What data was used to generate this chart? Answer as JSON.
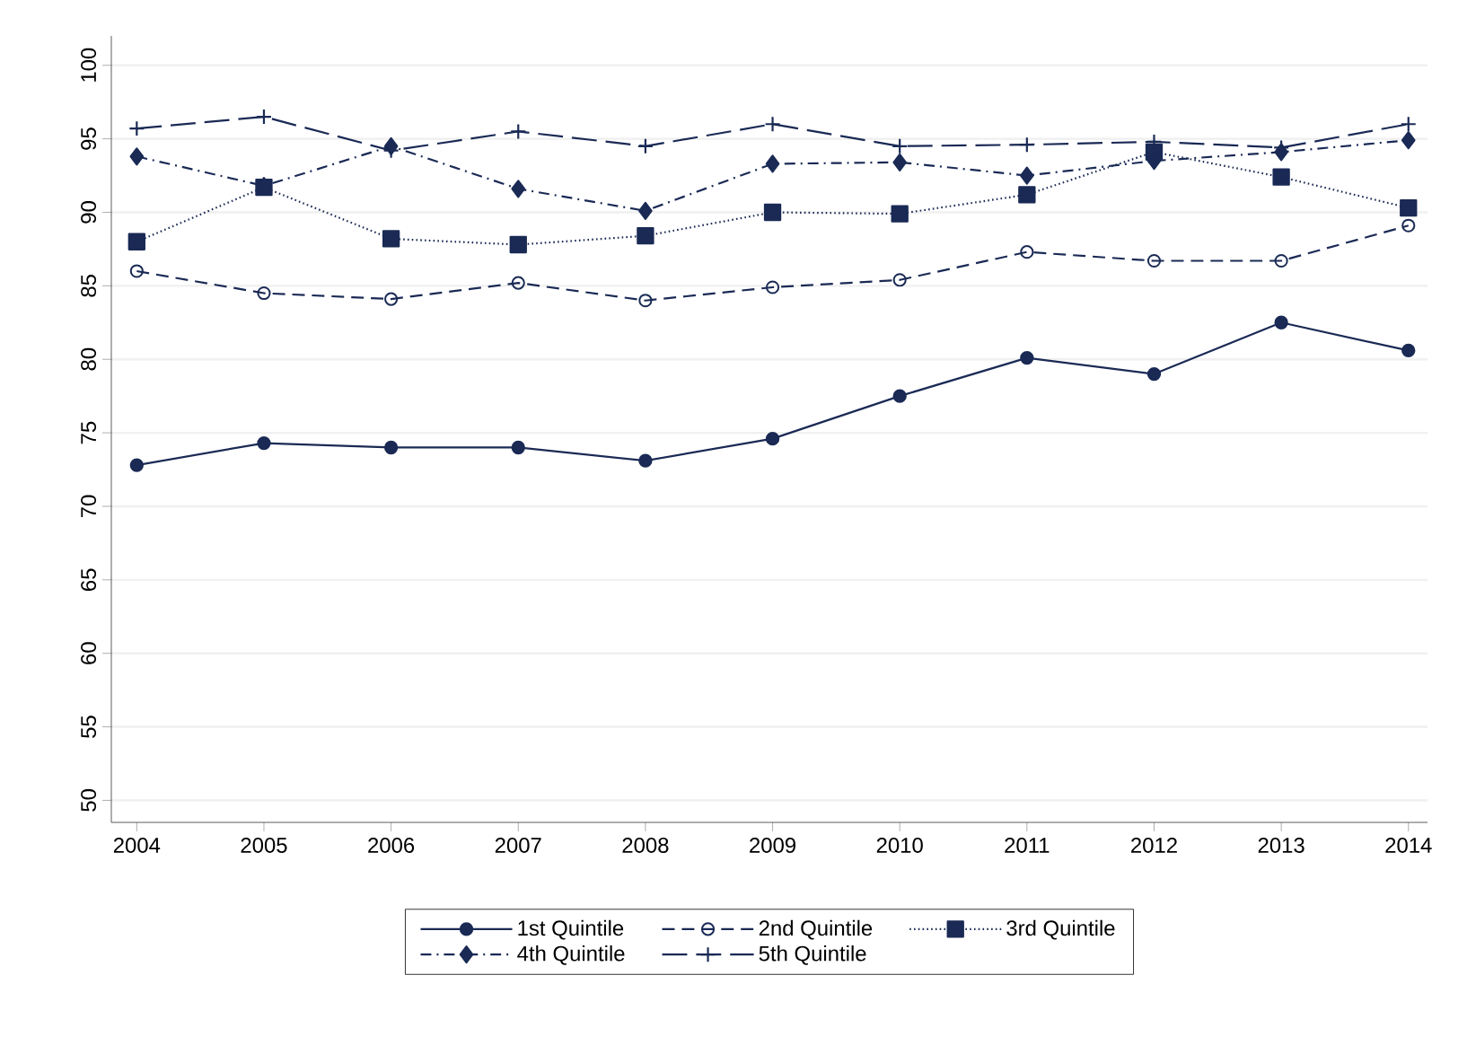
{
  "chart_data": {
    "type": "line",
    "x": [
      2004,
      2005,
      2006,
      2007,
      2008,
      2009,
      2010,
      2011,
      2012,
      2013,
      2014
    ],
    "series": [
      {
        "name": "1st Quintile",
        "color": "#1a2a55",
        "marker": "circle",
        "line_style": "solid",
        "values": [
          72.8,
          74.3,
          74.0,
          74.0,
          73.1,
          74.6,
          77.5,
          80.1,
          79.0,
          82.5,
          80.6
        ]
      },
      {
        "name": "2nd Quintile",
        "color": "#1a2a55",
        "marker": "open circle",
        "line_style": "dashed",
        "values": [
          86.0,
          84.5,
          84.1,
          85.2,
          84.0,
          84.9,
          85.4,
          87.3,
          86.7,
          86.7,
          89.1
        ]
      },
      {
        "name": "3rd Quintile",
        "color": "#1a2a55",
        "marker": "square",
        "line_style": "dotted",
        "values": [
          88.0,
          91.7,
          88.2,
          87.8,
          88.4,
          90.0,
          89.9,
          91.2,
          94.1,
          92.4,
          90.3
        ]
      },
      {
        "name": "4th Quintile",
        "color": "#1a2a55",
        "marker": "diamond",
        "line_style": "dashdot",
        "values": [
          93.8,
          91.8,
          94.5,
          91.6,
          90.1,
          93.3,
          93.4,
          92.5,
          93.5,
          94.1,
          94.9
        ]
      },
      {
        "name": "5th Quintile",
        "color": "#1a2a55",
        "marker": "cross",
        "line_style": "longdash",
        "values": [
          95.7,
          96.5,
          94.2,
          95.5,
          94.5,
          96.0,
          94.5,
          94.6,
          94.8,
          94.4,
          96.0
        ]
      }
    ],
    "xlim": [
      2003.8,
      2014.15
    ],
    "ylim": [
      48.5,
      102
    ],
    "xticks": [
      2004,
      2005,
      2006,
      2007,
      2008,
      2009,
      2010,
      2011,
      2012,
      2013,
      2014
    ],
    "yticks": [
      50,
      55,
      60,
      65,
      70,
      75,
      80,
      85,
      90,
      95,
      100
    ],
    "grid": "y",
    "legend": "bottom"
  }
}
